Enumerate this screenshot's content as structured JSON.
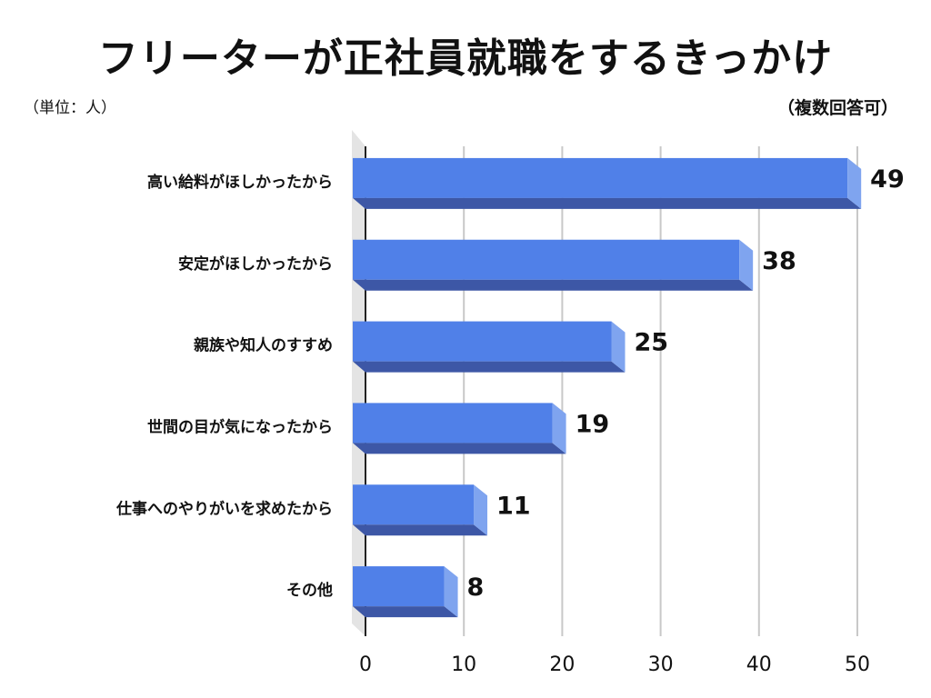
{
  "chart_data": {
    "type": "bar",
    "orientation": "horizontal",
    "title": "フリーターが正社員就職をするきっかけ",
    "unit_note": "（単位：人）",
    "footnote": "（複数回答可）",
    "categories": [
      "高い給料がほしかったから",
      "安定がほしかったから",
      "親族や知人のすすめ",
      "世間の目が気になったから",
      "仕事へのやりがいを求めたから",
      "その他"
    ],
    "values": [
      49,
      38,
      25,
      19,
      11,
      8
    ],
    "value_labels": [
      "49",
      "38",
      "25",
      "19",
      "11",
      "8"
    ],
    "xlim": [
      0,
      50
    ],
    "xticks": [
      "0",
      "10",
      "20",
      "30",
      "40",
      "50"
    ],
    "grid": true,
    "style": "3d",
    "colors": {
      "bar_front": "#5080e8",
      "bar_side": "#7fa4ef",
      "bar_bottom": "#3d57a6",
      "grid": "#c8c8c8",
      "wall": "#e4e4e4"
    }
  }
}
